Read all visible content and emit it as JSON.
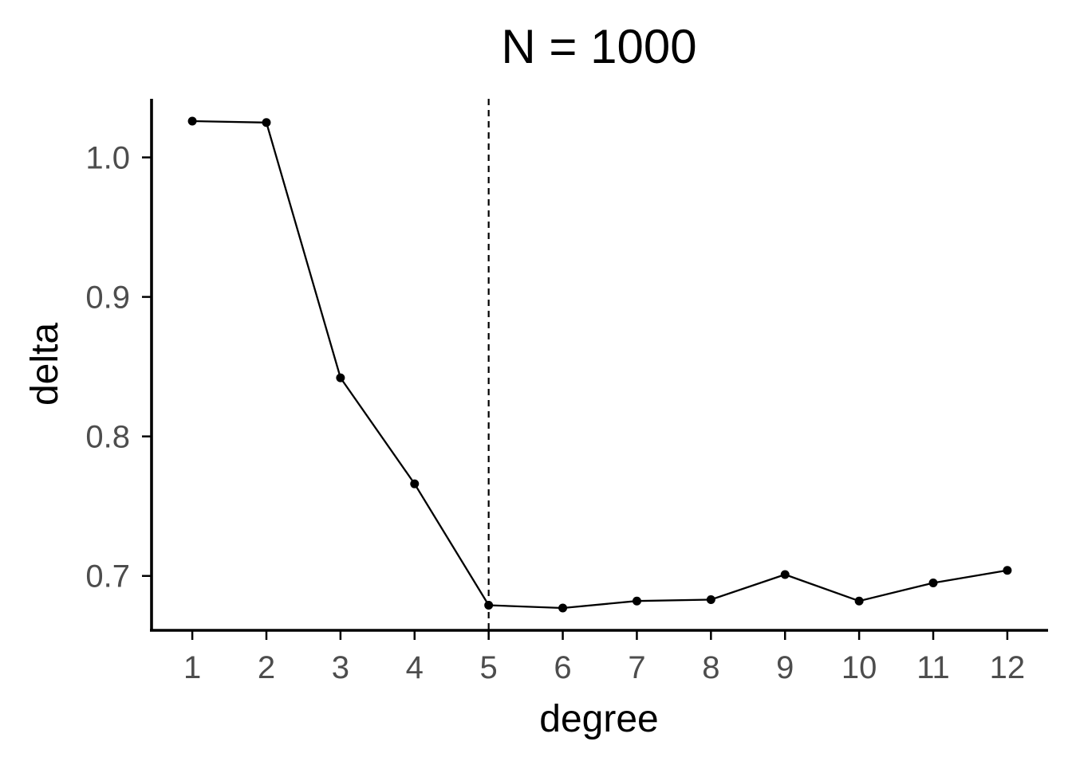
{
  "chart_data": {
    "type": "line",
    "title": "N = 1000",
    "xlabel": "degree",
    "ylabel": "delta",
    "x": [
      1,
      2,
      3,
      4,
      5,
      6,
      7,
      8,
      9,
      10,
      11,
      12
    ],
    "series": [
      {
        "values": [
          1.026,
          1.025,
          0.842,
          0.766,
          0.679,
          0.677,
          0.682,
          0.683,
          0.701,
          0.682,
          0.695,
          0.704
        ]
      }
    ],
    "xticks": [
      "1",
      "2",
      "3",
      "4",
      "5",
      "6",
      "7",
      "8",
      "9",
      "10",
      "11",
      "12"
    ],
    "yticks": [
      {
        "value": 0.7,
        "label": "0.7"
      },
      {
        "value": 0.8,
        "label": "0.8"
      },
      {
        "value": 0.9,
        "label": "0.9"
      },
      {
        "value": 1.0,
        "label": "1.0"
      }
    ],
    "xlim": [
      0.45,
      12.55
    ],
    "ylim": [
      0.661,
      1.042
    ],
    "vline": {
      "x": 5,
      "style": "dashed"
    },
    "grid": false,
    "legend": "none",
    "colors": {
      "line": "#000000",
      "points": "#000000",
      "axis": "#000000",
      "tick_text": "#4d4d4d"
    }
  }
}
